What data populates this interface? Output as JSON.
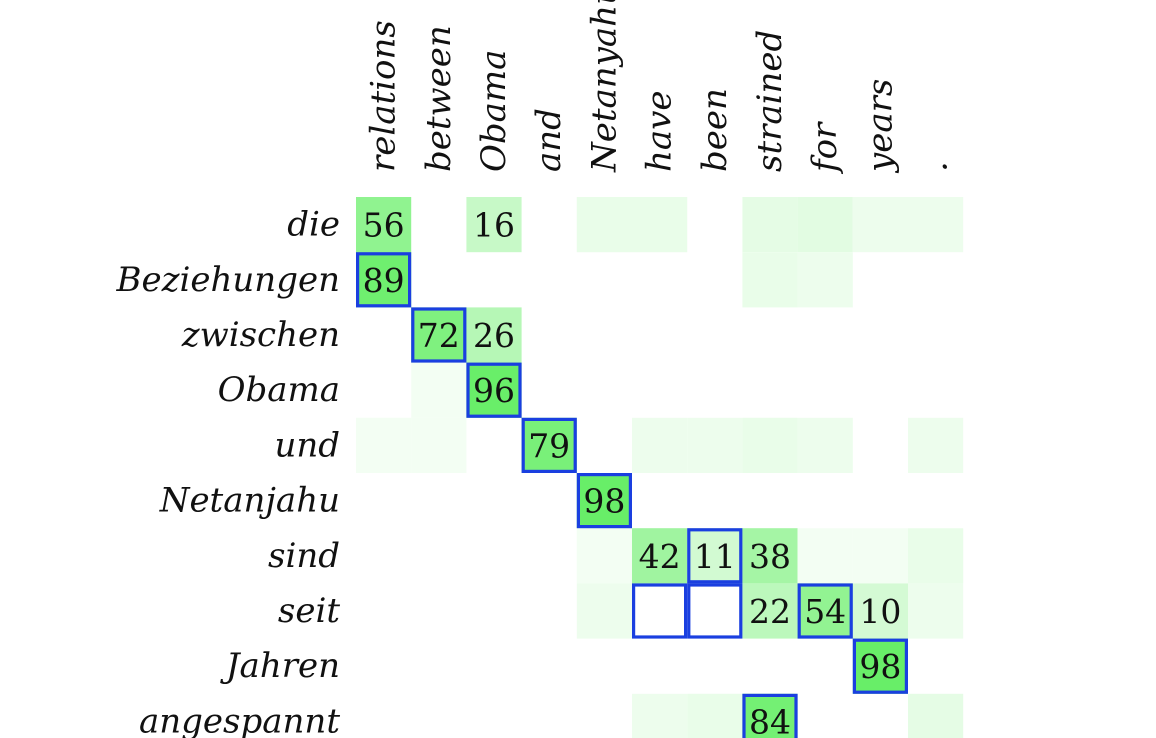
{
  "chart_data": {
    "type": "heatmap",
    "x_labels": [
      "relations",
      "between",
      "Obama",
      "and",
      "Netanyahu",
      "have",
      "been",
      "strained",
      "for",
      "years",
      "."
    ],
    "y_labels": [
      "die",
      "Beziehungen",
      "zwischen",
      "Obama",
      "und",
      "Netanjahu",
      "sind",
      "seit",
      "Jahren",
      "angespannt"
    ],
    "values": [
      [
        56,
        0,
        16,
        0,
        3,
        3,
        0,
        4,
        5,
        2,
        2
      ],
      [
        89,
        0,
        0,
        0,
        0,
        0,
        0,
        3,
        2,
        0,
        0
      ],
      [
        0,
        72,
        26,
        0,
        0,
        0,
        0,
        0,
        0,
        0,
        0
      ],
      [
        0,
        1,
        96,
        0,
        0,
        0,
        0,
        0,
        0,
        0,
        0
      ],
      [
        1,
        1,
        0,
        79,
        0,
        2,
        2,
        3,
        2,
        0,
        2
      ],
      [
        0,
        0,
        0,
        0,
        98,
        0,
        0,
        0,
        0,
        0,
        0
      ],
      [
        0,
        0,
        0,
        0,
        1,
        42,
        11,
        38,
        1,
        1,
        3
      ],
      [
        0,
        0,
        0,
        0,
        2,
        0,
        0,
        22,
        54,
        10,
        2
      ],
      [
        0,
        0,
        0,
        0,
        0,
        0,
        0,
        0,
        0,
        98,
        0
      ],
      [
        0,
        0,
        0,
        0,
        0,
        2,
        3,
        84,
        0,
        0,
        4
      ]
    ],
    "labeled_threshold": 10,
    "highlighted_cells": [
      [
        1,
        0
      ],
      [
        2,
        1
      ],
      [
        3,
        2
      ],
      [
        4,
        3
      ],
      [
        5,
        4
      ],
      [
        6,
        6
      ],
      [
        7,
        5
      ],
      [
        7,
        6
      ],
      [
        7,
        8
      ],
      [
        8,
        9
      ],
      [
        9,
        7
      ]
    ],
    "colors": {
      "cell_high": "#66ee66",
      "cell_low": "#ffffff",
      "highlight_border": "#1a3fe0",
      "text": "#111111"
    }
  }
}
